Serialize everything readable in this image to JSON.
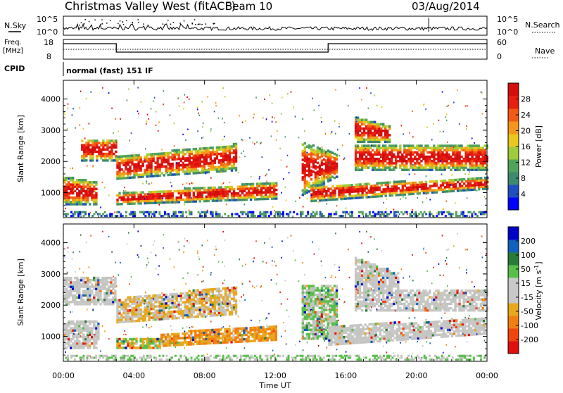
{
  "header": {
    "title": "Christmas Valley West (fitACF)",
    "beam": "Beam 10",
    "date": "03/Aug/2014"
  },
  "mini_panels": {
    "nsky": {
      "label": "N.Sky",
      "ticks": [
        "10^5",
        "10^0"
      ]
    },
    "nsearch": {
      "label": "N.Search",
      "ticks": [
        "10^5",
        "10^0"
      ]
    },
    "freq": {
      "label1": "Freq.",
      "label2": "[MHz]",
      "ticks": [
        "18",
        "8"
      ]
    },
    "nave": {
      "label": "Nave",
      "ticks": [
        "60",
        "0"
      ]
    },
    "cpid": {
      "label": "CPID",
      "mode": "normal (fast) 151 IF"
    }
  },
  "colors": {
    "power": [
      "#0000ff",
      "#1f4fc0",
      "#3e8a6e",
      "#52a35a",
      "#9fcb3c",
      "#e8c81c",
      "#f5961a",
      "#f25a14",
      "#e81e10",
      "#d40d0d"
    ],
    "velocity": [
      "#0000c8",
      "#1060c0",
      "#2a7a3a",
      "#58c04a",
      "#c8c8c8",
      "#c8c8c8",
      "#e8a81c",
      "#f27e10",
      "#f0460e",
      "#e01010"
    ],
    "gray_scatter": "#c4c4c0"
  },
  "chart_data": [
    {
      "type": "heatmap",
      "name": "power",
      "ylabel": "Slant Range [km]",
      "y_ticks": [
        1000,
        2000,
        3000,
        4000
      ],
      "ylim": [
        200,
        4600
      ],
      "xlim": [
        0,
        24
      ],
      "colorbar": {
        "label": "Power [dB]",
        "ticks": [
          4,
          8,
          12,
          16,
          20,
          24,
          28
        ],
        "range": [
          0,
          30
        ]
      }
    },
    {
      "type": "heatmap",
      "name": "velocity",
      "ylabel": "Slant Range [km]",
      "y_ticks": [
        1000,
        2000,
        3000,
        4000
      ],
      "ylim": [
        200,
        4600
      ],
      "xlim": [
        0,
        24
      ],
      "xlabel": "Time UT",
      "x_ticks": [
        "00:00",
        "04:00",
        "08:00",
        "12:00",
        "16:00",
        "20:00",
        "00:00"
      ],
      "colorbar": {
        "label": "Velocity [m s^-1]",
        "ticks": [
          "200",
          "100",
          "50",
          "15",
          "-15",
          "-50",
          "-100",
          "-200"
        ]
      }
    }
  ]
}
